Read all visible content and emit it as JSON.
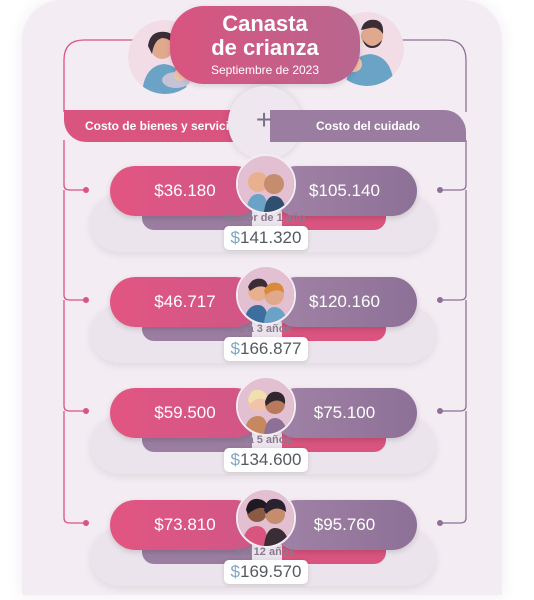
{
  "header": {
    "title_line1": "Canasta",
    "title_line2": "de crianza",
    "subtitle": "Septiembre de 2023",
    "left_label": "Costo de bienes y servicios",
    "plus": "+",
    "right_label": "Costo del cuidado"
  },
  "rows": [
    {
      "goods": "$36.180",
      "care": "$105.140",
      "age": "Menor de 1 año",
      "currency": "$",
      "total": "141.320"
    },
    {
      "goods": "$46.717",
      "care": "$120.160",
      "age": "1 a 3 años",
      "currency": "$",
      "total": "166.877"
    },
    {
      "goods": "$59.500",
      "care": "$75.100",
      "age": "4 a 5 años",
      "currency": "$",
      "total": "134.600"
    },
    {
      "goods": "$73.810",
      "care": "$95.760",
      "age": "6 a 12 años",
      "currency": "$",
      "total": "169.570"
    }
  ],
  "colors": {
    "pink": "#d9547f",
    "purple": "#9a7da0",
    "background": "#f3edf3"
  },
  "icons": [
    "mother-with-baby-icon",
    "father-feeding-baby-icon",
    "babies-icon",
    "toddlers-icon",
    "preschoolers-icon",
    "school-kids-icon"
  ]
}
